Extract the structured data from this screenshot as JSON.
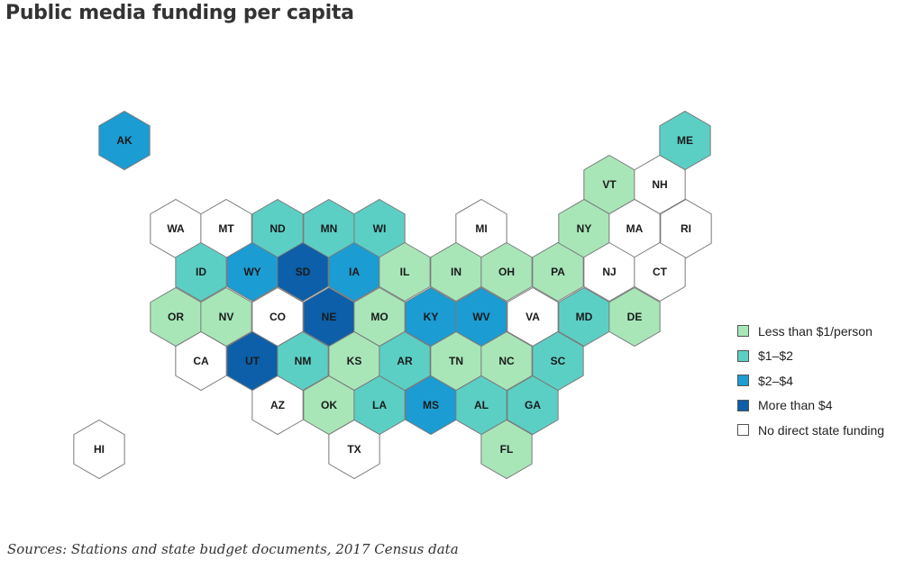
{
  "title": "Public media funding per capita",
  "source": "Sources: Stations and state budget documents, 2017 Census data",
  "categories": {
    "lt1": {
      "label": "Less than $1/person",
      "color": "#a8e6b8"
    },
    "1to2": {
      "label": "$1–$2",
      "color": "#5ccfc5"
    },
    "2to4": {
      "label": "$2–$4",
      "color": "#1b9cd2"
    },
    "gt4": {
      "label": "More than $4",
      "color": "#0c5fa8"
    },
    "none": {
      "label": "No direct state funding",
      "color": "#ffffff"
    }
  },
  "legend_order": [
    "lt1",
    "1to2",
    "2to4",
    "gt4",
    "none"
  ],
  "states": [
    {
      "abbr": "AK",
      "cat": "2to4"
    },
    {
      "abbr": "ME",
      "cat": "1to2"
    },
    {
      "abbr": "VT",
      "cat": "lt1"
    },
    {
      "abbr": "NH",
      "cat": "none"
    },
    {
      "abbr": "WA",
      "cat": "none"
    },
    {
      "abbr": "MT",
      "cat": "none"
    },
    {
      "abbr": "ND",
      "cat": "1to2"
    },
    {
      "abbr": "MN",
      "cat": "1to2"
    },
    {
      "abbr": "WI",
      "cat": "1to2"
    },
    {
      "abbr": "MI",
      "cat": "none"
    },
    {
      "abbr": "NY",
      "cat": "lt1"
    },
    {
      "abbr": "MA",
      "cat": "none"
    },
    {
      "abbr": "RI",
      "cat": "none"
    },
    {
      "abbr": "ID",
      "cat": "1to2"
    },
    {
      "abbr": "WY",
      "cat": "2to4"
    },
    {
      "abbr": "SD",
      "cat": "gt4"
    },
    {
      "abbr": "IA",
      "cat": "2to4"
    },
    {
      "abbr": "IL",
      "cat": "lt1"
    },
    {
      "abbr": "IN",
      "cat": "lt1"
    },
    {
      "abbr": "OH",
      "cat": "lt1"
    },
    {
      "abbr": "PA",
      "cat": "lt1"
    },
    {
      "abbr": "NJ",
      "cat": "none"
    },
    {
      "abbr": "CT",
      "cat": "none"
    },
    {
      "abbr": "OR",
      "cat": "lt1"
    },
    {
      "abbr": "NV",
      "cat": "lt1"
    },
    {
      "abbr": "CO",
      "cat": "none"
    },
    {
      "abbr": "NE",
      "cat": "gt4"
    },
    {
      "abbr": "MO",
      "cat": "lt1"
    },
    {
      "abbr": "KY",
      "cat": "2to4"
    },
    {
      "abbr": "WV",
      "cat": "2to4"
    },
    {
      "abbr": "VA",
      "cat": "none"
    },
    {
      "abbr": "MD",
      "cat": "1to2"
    },
    {
      "abbr": "DE",
      "cat": "lt1"
    },
    {
      "abbr": "CA",
      "cat": "none"
    },
    {
      "abbr": "UT",
      "cat": "gt4"
    },
    {
      "abbr": "NM",
      "cat": "1to2"
    },
    {
      "abbr": "KS",
      "cat": "lt1"
    },
    {
      "abbr": "AR",
      "cat": "1to2"
    },
    {
      "abbr": "TN",
      "cat": "lt1"
    },
    {
      "abbr": "NC",
      "cat": "lt1"
    },
    {
      "abbr": "SC",
      "cat": "1to2"
    },
    {
      "abbr": "AZ",
      "cat": "none"
    },
    {
      "abbr": "OK",
      "cat": "lt1"
    },
    {
      "abbr": "LA",
      "cat": "1to2"
    },
    {
      "abbr": "MS",
      "cat": "2to4"
    },
    {
      "abbr": "AL",
      "cat": "1to2"
    },
    {
      "abbr": "GA",
      "cat": "1to2"
    },
    {
      "abbr": "TX",
      "cat": "none"
    },
    {
      "abbr": "FL",
      "cat": "lt1"
    },
    {
      "abbr": "HI",
      "cat": "none"
    }
  ]
}
